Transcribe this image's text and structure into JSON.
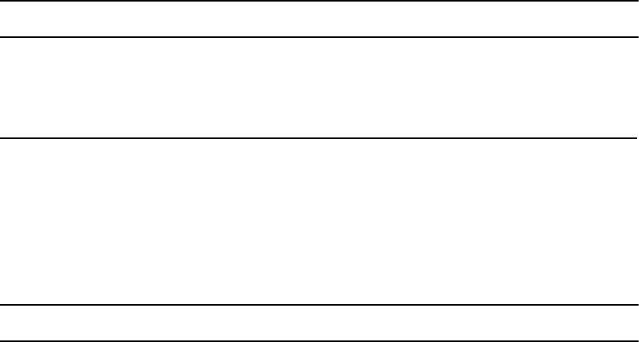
{
  "document": {
    "rule_color": "#000000",
    "rows": []
  }
}
